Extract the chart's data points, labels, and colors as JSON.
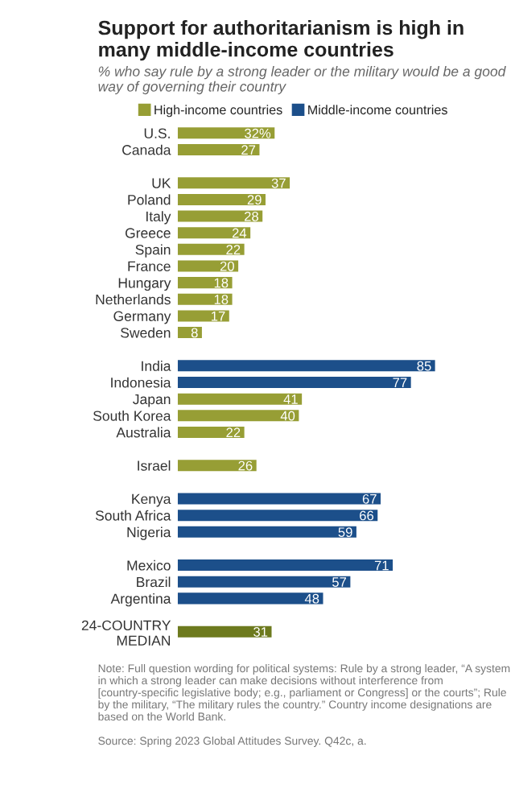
{
  "chart_data": {
    "type": "bar",
    "orientation": "horizontal",
    "legend": "top",
    "title": "Support for authoritarianism is high in many middle-income countries",
    "subtitle": "% who say rule by a strong leader or the military would be a good way of governing their country",
    "categories": [
      "U.S.",
      "Canada",
      null,
      "UK",
      "Poland",
      "Italy",
      "Greece",
      "Spain",
      "France",
      "Hungary",
      "Netherlands",
      "Germany",
      "Sweden",
      null,
      "India",
      "Indonesia",
      "Japan",
      "South Korea",
      "Australia",
      null,
      "Israel",
      null,
      "Kenya",
      "South Africa",
      "Nigeria",
      null,
      "Mexico",
      "Brazil",
      "Argentina",
      null,
      "24-COUNTRY\nMEDIAN"
    ],
    "series": [
      {
        "name": "High-income countries",
        "color": "#979e35",
        "values": [
          32,
          27,
          null,
          37,
          29,
          28,
          24,
          22,
          20,
          18,
          18,
          17,
          8,
          null,
          null,
          null,
          41,
          40,
          22,
          null,
          26,
          null,
          null,
          null,
          null,
          null,
          null,
          null,
          null,
          null,
          null
        ],
        "value_labels": [
          "32%",
          "27",
          null,
          "37",
          "29",
          "28",
          "24",
          "22",
          "20",
          "18",
          "18",
          "17",
          "8",
          null,
          null,
          null,
          "41",
          "40",
          "22",
          null,
          "26",
          null,
          null,
          null,
          null,
          null,
          null,
          null,
          null,
          null,
          null
        ]
      },
      {
        "name": "Middle-income countries",
        "color": "#1c4f8a",
        "values": [
          null,
          null,
          null,
          null,
          null,
          null,
          null,
          null,
          null,
          null,
          null,
          null,
          null,
          null,
          85,
          77,
          null,
          null,
          null,
          null,
          null,
          null,
          67,
          66,
          59,
          null,
          71,
          57,
          48,
          null,
          null
        ],
        "value_labels": [
          null,
          null,
          null,
          null,
          null,
          null,
          null,
          null,
          null,
          null,
          null,
          null,
          null,
          null,
          "85",
          "77",
          null,
          null,
          null,
          null,
          null,
          null,
          "67",
          "66",
          "59",
          null,
          "71",
          "57",
          "48",
          null,
          null
        ]
      },
      {
        "color": "#6d7a1e",
        "values": [
          null,
          null,
          null,
          null,
          null,
          null,
          null,
          null,
          null,
          null,
          null,
          null,
          null,
          null,
          null,
          null,
          null,
          null,
          null,
          null,
          null,
          null,
          null,
          null,
          null,
          null,
          null,
          null,
          null,
          null,
          31
        ],
        "value_labels": [
          null,
          null,
          null,
          null,
          null,
          null,
          null,
          null,
          null,
          null,
          null,
          null,
          null,
          null,
          null,
          null,
          null,
          null,
          null,
          null,
          null,
          null,
          null,
          null,
          null,
          null,
          null,
          null,
          null,
          null,
          "31"
        ]
      }
    ],
    "annotations": [
      "Note: Full question wording for political systems: Rule by a strong leader, “A system in which a strong leader can make decisions without interference from [country-specific legislative body; e.g., parliament or Congress] or the courts”; Rule by the military, “The military rules the country.” Country income designations are based on the World Bank.",
      "Source: Spring 2023 Global Attitudes Survey. Q42c, a."
    ]
  }
}
